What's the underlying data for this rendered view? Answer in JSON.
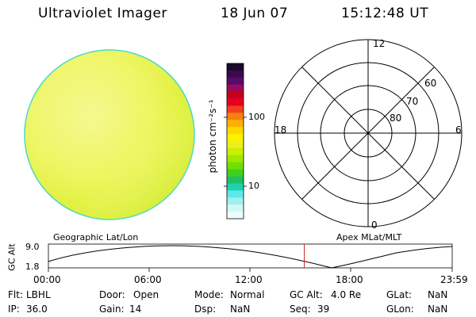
{
  "header": {
    "instrument": "Ultraviolet Imager",
    "date": "18 Jun 07",
    "time": "15:12:48 UT"
  },
  "colorbar": {
    "label": "photon cm⁻²s⁻¹",
    "ticks": [
      {
        "value": 100,
        "label": "100"
      },
      {
        "value": 10,
        "label": "10"
      }
    ],
    "colors": [
      "#1a0a2a",
      "#3a0a4a",
      "#5a0a6a",
      "#9a0a5a",
      "#c8001e",
      "#e8001e",
      "#f04020",
      "#f88010",
      "#ffb000",
      "#ffd800",
      "#fff000",
      "#e8f020",
      "#c8f000",
      "#a0e800",
      "#70e000",
      "#40d020",
      "#20c060",
      "#20d0b0",
      "#60e8e8",
      "#a0f0f0",
      "#d0f8f8",
      "#f0fcfc"
    ]
  },
  "polar": {
    "labels": {
      "top": "12",
      "bottom": "0",
      "left": "18",
      "right": "6"
    },
    "lat_labels": [
      "60",
      "70",
      "80"
    ]
  },
  "timeline": {
    "left_title": "Geographic Lat/Lon",
    "right_title": "Apex MLat/MLT",
    "ylabel": "GC Alt",
    "y_ticks": [
      "9.0",
      "1.8"
    ],
    "x_ticks": [
      "00:00",
      "06:00",
      "12:00",
      "18:00",
      "23:59"
    ],
    "current_time_hours": 15.21
  },
  "info": {
    "flt_label": "Flt:",
    "flt": "LBHL",
    "ip_label": "IP:",
    "ip": "36.0",
    "door_label": "Door:",
    "door": "Open",
    "gain_label": "Gain:",
    "gain": "14",
    "mode_label": "Mode:",
    "mode": "Normal",
    "dsp_label": "Dsp:",
    "dsp": "NaN",
    "gcalt_label": "GC Alt:",
    "gcalt": "4.0 Re",
    "seq_label": "Seq:",
    "seq": "39",
    "glat_label": "GLat:",
    "glat": "NaN",
    "glon_label": "GLon:",
    "glon": "NaN"
  }
}
